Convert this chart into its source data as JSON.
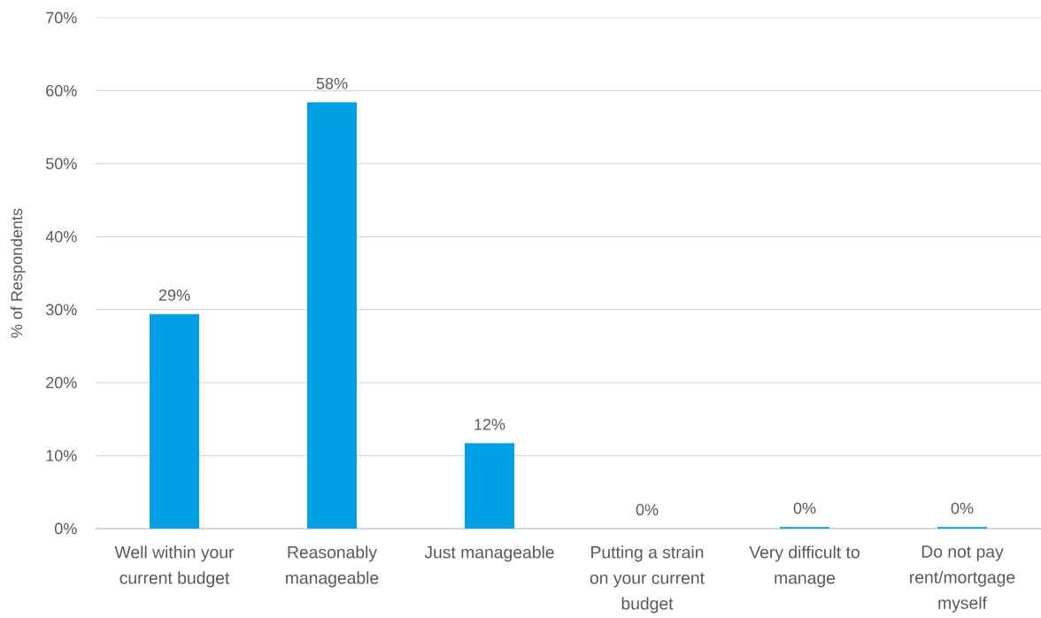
{
  "chart_data": {
    "type": "bar",
    "ylabel": "% of Respondents",
    "categories": [
      "Well within your current budget",
      "Reasonably manageable",
      "Just manageable",
      "Putting a strain on your current budget",
      "Very difficult to manage",
      "Do not pay rent/mortgage myself"
    ],
    "values": [
      29.4,
      58.4,
      11.7,
      0,
      0.2,
      0.2
    ],
    "value_labels": [
      "29%",
      "58%",
      "12%",
      "0%",
      "0%",
      "0%"
    ],
    "color": "#009fe3",
    "ylim": [
      0,
      70
    ],
    "yticks": [
      {
        "value": 0,
        "label": "0%"
      },
      {
        "value": 10,
        "label": "10%"
      },
      {
        "value": 20,
        "label": "20%"
      },
      {
        "value": 30,
        "label": "30%"
      },
      {
        "value": 40,
        "label": "40%"
      },
      {
        "value": 50,
        "label": "50%"
      },
      {
        "value": 60,
        "label": "60%"
      },
      {
        "value": 70,
        "label": "70%"
      }
    ],
    "grid": "y"
  }
}
